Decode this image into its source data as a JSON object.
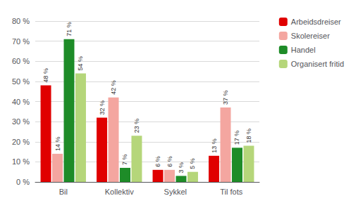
{
  "chart_data": {
    "type": "bar",
    "categories": [
      "Bil",
      "Kollektiv",
      "Sykkel",
      "Til fots"
    ],
    "series": [
      {
        "name": "Arbeidsdreiser",
        "color": "#e00000",
        "values": [
          48,
          32,
          6,
          13
        ],
        "value_labels": [
          "48 %",
          "32 %",
          "6 %",
          "13 %"
        ]
      },
      {
        "name": "Skolereiser",
        "color": "#f4a6a0",
        "values": [
          14,
          42,
          6,
          37
        ],
        "value_labels": [
          "14 %",
          "42 %",
          "6 %",
          "37 %"
        ]
      },
      {
        "name": "Handel",
        "color": "#1e8c28",
        "values": [
          71,
          7,
          3,
          17
        ],
        "value_labels": [
          "71 %",
          "7 %",
          "3 %",
          "17 %"
        ]
      },
      {
        "name": "Organisert fritid",
        "color": "#b5d67a",
        "values": [
          54,
          23,
          5,
          18
        ],
        "value_labels": [
          "54 %",
          "23 %",
          "5 %",
          "18 %"
        ]
      }
    ],
    "ylim": [
      0,
      80
    ],
    "yticks": [
      {
        "value": 0,
        "label": "0 %"
      },
      {
        "value": 10,
        "label": "10 %"
      },
      {
        "value": 20,
        "label": "20 %"
      },
      {
        "value": 30,
        "label": "30 %"
      },
      {
        "value": 40,
        "label": "40 %"
      },
      {
        "value": 50,
        "label": "50 %"
      },
      {
        "value": 60,
        "label": "60 %"
      },
      {
        "value": 70,
        "label": "70 %"
      },
      {
        "value": 80,
        "label": "80 %"
      }
    ],
    "grid": true,
    "legend": "right",
    "data_labels": true
  }
}
